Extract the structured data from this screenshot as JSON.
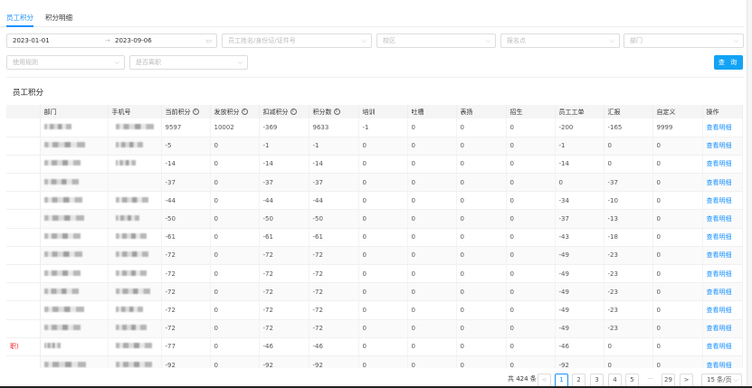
{
  "tabs": [
    {
      "label": "员工积分",
      "active": true
    },
    {
      "label": "积分明细",
      "active": false
    }
  ],
  "filters": {
    "date_start": "2023-01-01",
    "date_sep": "→",
    "date_end": "2023-09-06",
    "employee_placeholder": "员工姓名/身份证/证件号",
    "campus_placeholder": "校区",
    "signup_placeholder": "报名点",
    "dept_placeholder": "部门",
    "rule_placeholder": "使用规则",
    "resigned_placeholder": "是否离职",
    "query_label": "查 询"
  },
  "section_title": "员工积分",
  "table": {
    "columns": [
      "",
      "部门",
      "手机号",
      "当前积分",
      "发放积分",
      "扣减积分",
      "积分数",
      "培训",
      "吐槽",
      "表扬",
      "招生",
      "员工工单",
      "汇报",
      "自定义",
      "操作"
    ],
    "info_columns": [
      3,
      4,
      5,
      6
    ],
    "action_label": "查看明细",
    "rows": [
      {
        "first": "",
        "values": [
          "9597",
          "10002",
          "-369",
          "9633",
          "-1",
          "0",
          "0",
          "0",
          "-200",
          "-165",
          "9999"
        ]
      },
      {
        "first": "",
        "values": [
          "-5",
          "0",
          "-1",
          "-1",
          "0",
          "0",
          "0",
          "0",
          "-1",
          "0",
          "0"
        ]
      },
      {
        "first": "",
        "values": [
          "-14",
          "0",
          "-14",
          "-14",
          "0",
          "0",
          "0",
          "0",
          "-14",
          "0",
          "0"
        ]
      },
      {
        "first": "",
        "values": [
          "-37",
          "0",
          "-37",
          "-37",
          "0",
          "0",
          "0",
          "0",
          "0",
          "-37",
          "0"
        ]
      },
      {
        "first": "",
        "values": [
          "-44",
          "0",
          "-44",
          "-44",
          "0",
          "0",
          "0",
          "0",
          "-34",
          "-10",
          "0"
        ]
      },
      {
        "first": "",
        "values": [
          "-50",
          "0",
          "-50",
          "-50",
          "0",
          "0",
          "0",
          "0",
          "-37",
          "-13",
          "0"
        ]
      },
      {
        "first": "",
        "values": [
          "-61",
          "0",
          "-61",
          "-61",
          "0",
          "0",
          "0",
          "0",
          "-43",
          "-18",
          "0"
        ]
      },
      {
        "first": "",
        "values": [
          "-72",
          "0",
          "-72",
          "-72",
          "0",
          "0",
          "0",
          "0",
          "-49",
          "-23",
          "0"
        ]
      },
      {
        "first": "",
        "values": [
          "-72",
          "0",
          "-72",
          "-72",
          "0",
          "0",
          "0",
          "0",
          "-49",
          "-23",
          "0"
        ]
      },
      {
        "first": "",
        "values": [
          "-72",
          "0",
          "-72",
          "-72",
          "0",
          "0",
          "0",
          "0",
          "-49",
          "-23",
          "0"
        ]
      },
      {
        "first": "",
        "values": [
          "-72",
          "0",
          "-72",
          "-72",
          "0",
          "0",
          "0",
          "0",
          "-49",
          "-23",
          "0"
        ]
      },
      {
        "first": "",
        "values": [
          "-72",
          "0",
          "-72",
          "-72",
          "0",
          "0",
          "0",
          "0",
          "-49",
          "-23",
          "0"
        ]
      },
      {
        "first": "职)",
        "values": [
          "-77",
          "0",
          "-46",
          "-46",
          "0",
          "0",
          "0",
          "0",
          "-46",
          "0",
          "0"
        ]
      },
      {
        "first": "",
        "values": [
          "-92",
          "0",
          "-92",
          "-92",
          "0",
          "0",
          "0",
          "0",
          "-92",
          "0",
          "0"
        ]
      }
    ]
  },
  "pagination": {
    "total": "共 424 条",
    "pages": [
      "1",
      "2",
      "3",
      "4",
      "5"
    ],
    "ellipsis": "···",
    "last": "29",
    "current": "1",
    "prev": "<",
    "next": ">",
    "page_size": "15 条/页"
  },
  "colors": {
    "accent": "#1890ff",
    "button": "#13a3f5",
    "resigned": "#f5222d"
  }
}
